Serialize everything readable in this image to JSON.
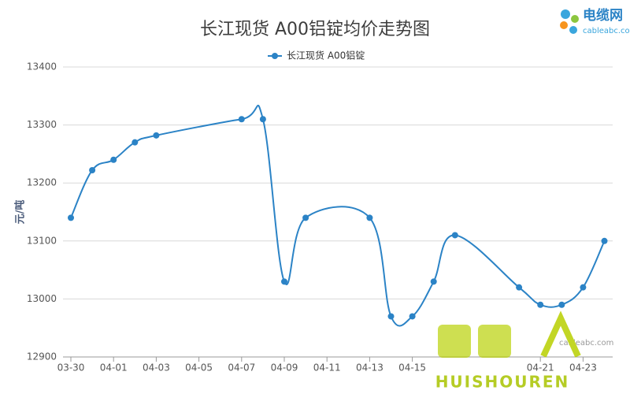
{
  "chart_data": {
    "type": "line",
    "title": "长江现货 A00铝锭均价走势图",
    "y_label": "元/吨",
    "x": [
      "03-30",
      "03-31",
      "04-01",
      "04-02",
      "04-03",
      "04-07",
      "04-08",
      "04-09",
      "04-10",
      "04-13",
      "04-14",
      "04-15",
      "04-16",
      "04-17",
      "04-20",
      "04-21",
      "04-22",
      "04-23",
      "04-24"
    ],
    "series": [
      {
        "name": "长江现货 A00铝锭",
        "color": "#2b83c6",
        "values": [
          13140,
          13222,
          13240,
          13270,
          13282,
          13310,
          13310,
          13030,
          13140,
          13140,
          12970,
          12970,
          13030,
          13110,
          13020,
          12990,
          12990,
          13020,
          13100
        ]
      }
    ],
    "xticks": [
      "03-30",
      "04-01",
      "04-03",
      "04-05",
      "04-07",
      "04-09",
      "04-11",
      "04-13",
      "04-15",
      "04-21",
      "04-23"
    ],
    "ylim": [
      12900,
      13400
    ],
    "yticks": [
      12900,
      13000,
      13100,
      13200,
      13300,
      13400
    ],
    "grid": true
  },
  "logo": {
    "name": "电缆网",
    "site": "cableabc.com"
  },
  "watermark": {
    "site": "cableabc.com",
    "brand": "HUISHOUREN"
  }
}
